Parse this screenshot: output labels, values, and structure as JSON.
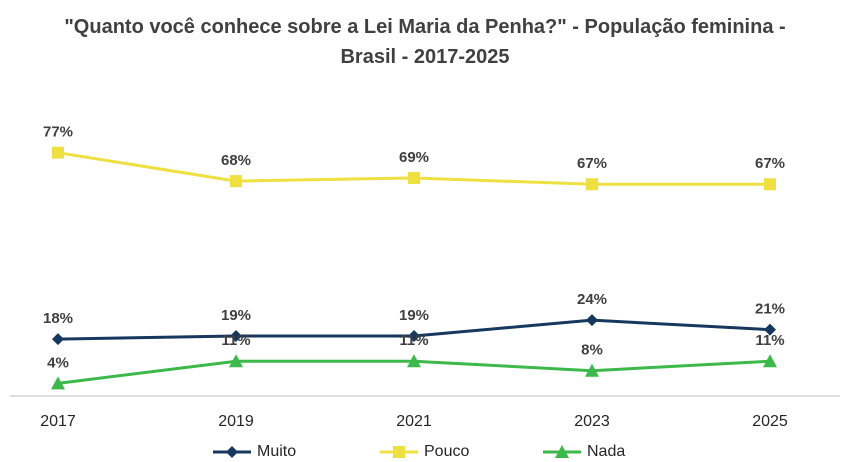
{
  "chart_data": {
    "type": "line",
    "title": "\"Quanto você conhece sobre a Lei Maria da Penha?\" - População feminina - Brasil - 2017-2025",
    "categories": [
      "2017",
      "2019",
      "2021",
      "2023",
      "2025"
    ],
    "ylim": [
      0,
      100
    ],
    "legend": "bottom",
    "series": [
      {
        "name": "Muito",
        "color": "#17375e",
        "marker": "diamond",
        "values": [
          18,
          19,
          19,
          24,
          21
        ],
        "value_labels": [
          "18%",
          "19%",
          "19%",
          "24%",
          "21%"
        ]
      },
      {
        "name": "Pouco",
        "color": "#eee040",
        "marker": "square",
        "values": [
          77,
          68,
          69,
          67,
          67
        ],
        "value_labels": [
          "77%",
          "68%",
          "69%",
          "67%",
          "67%"
        ]
      },
      {
        "name": "Nada",
        "color": "#3cb94a",
        "marker": "triangle",
        "values": [
          4,
          11,
          11,
          8,
          11
        ],
        "value_labels": [
          "4%",
          "11%",
          "11%",
          "8%",
          "11%"
        ]
      }
    ]
  }
}
